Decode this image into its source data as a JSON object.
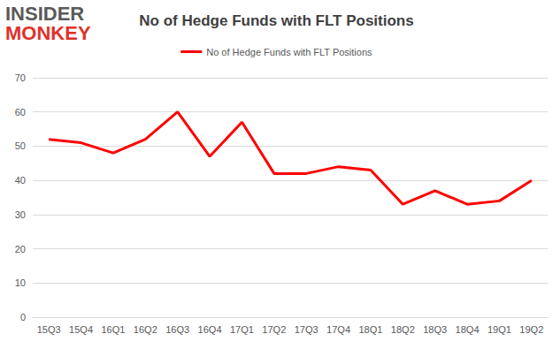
{
  "chart_data": {
    "type": "line",
    "title": "No of Hedge Funds with FLT Positions",
    "annotations": [
      "INSIDER",
      "MONKEY"
    ],
    "categories": [
      "15Q3",
      "15Q4",
      "16Q1",
      "16Q2",
      "16Q3",
      "16Q4",
      "17Q1",
      "17Q2",
      "17Q3",
      "17Q4",
      "18Q1",
      "18Q2",
      "18Q3",
      "18Q4",
      "19Q1",
      "19Q2"
    ],
    "series": [
      {
        "name": "No of Hedge Funds with FLT Positions",
        "color": "#ff0000",
        "values": [
          52,
          51,
          48,
          52,
          60,
          47,
          57,
          42,
          42,
          44,
          43,
          33,
          37,
          33,
          34,
          40
        ]
      }
    ],
    "ylim": [
      0,
      70
    ],
    "yticks": [
      0,
      10,
      20,
      30,
      40,
      50,
      60,
      70
    ],
    "grid": true,
    "legend": "top"
  }
}
